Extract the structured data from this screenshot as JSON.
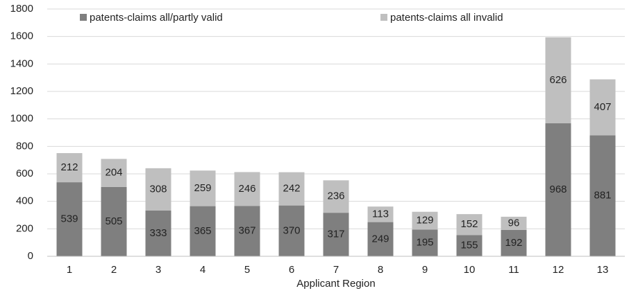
{
  "chart_data": {
    "type": "stacked_bar",
    "categories": [
      "1",
      "2",
      "3",
      "4",
      "5",
      "6",
      "7",
      "8",
      "9",
      "10",
      "11",
      "12",
      "13"
    ],
    "series": [
      {
        "name": "patents-claims all/partly valid",
        "color": "#7f7f7f",
        "values": [
          539,
          505,
          333,
          365,
          367,
          370,
          317,
          249,
          195,
          155,
          192,
          968,
          881
        ]
      },
      {
        "name": "patents-claims all invalid",
        "color": "#bfbfbf",
        "values": [
          212,
          204,
          308,
          259,
          246,
          242,
          236,
          113,
          129,
          152,
          96,
          626,
          407
        ]
      }
    ],
    "xlabel": "Applicant Region",
    "ylim": [
      0,
      1800
    ],
    "yticks": [
      0,
      200,
      400,
      600,
      800,
      1000,
      1200,
      1400,
      1600,
      1800
    ],
    "grid": true,
    "legend": "top"
  }
}
